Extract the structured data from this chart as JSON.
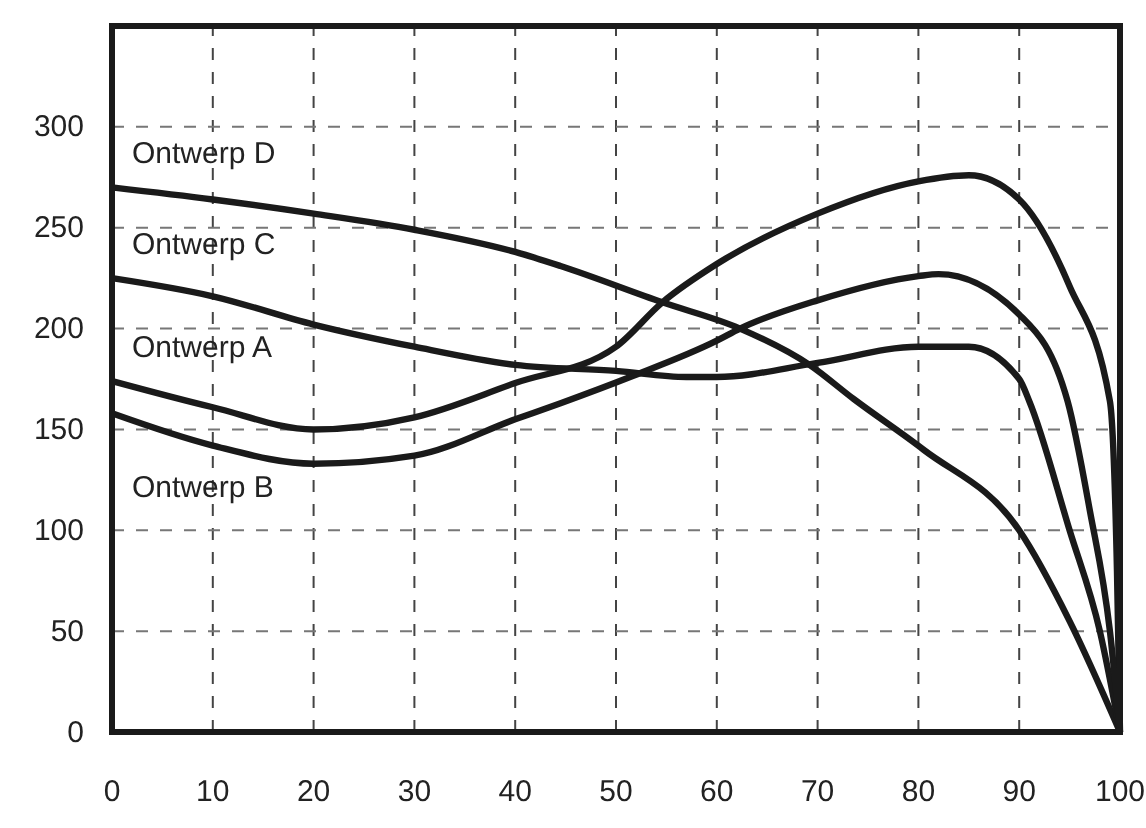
{
  "chart_data": {
    "type": "line",
    "xlim": [
      0,
      100
    ],
    "ylim": [
      0,
      350
    ],
    "xticks": [
      0,
      10,
      20,
      30,
      40,
      50,
      60,
      70,
      80,
      90,
      100
    ],
    "yticks": [
      0,
      50,
      100,
      150,
      200,
      250,
      300
    ],
    "grid": true,
    "line_style": "solid",
    "marker": "none",
    "series": [
      {
        "name": "Ontwerp D",
        "color": "#1a1a1a",
        "x": [
          0,
          10,
          20,
          30,
          40,
          44.5,
          54.6,
          62.3,
          69.2,
          73.6,
          80.5,
          90,
          95,
          100
        ],
        "values": [
          270,
          264,
          257,
          249,
          238,
          231,
          213,
          200,
          182,
          165,
          140,
          100,
          55,
          0
        ]
      },
      {
        "name": "Ontwerp C",
        "color": "#1a1a1a",
        "x": [
          0,
          10,
          20,
          30,
          40,
          50,
          57,
          60,
          70,
          80,
          85,
          90,
          91,
          95,
          98,
          100
        ],
        "values": [
          225,
          216,
          202,
          191,
          182,
          179,
          176,
          176,
          183,
          191,
          191,
          175,
          164,
          100,
          50,
          0
        ]
      },
      {
        "name": "Ontwerp A",
        "color": "#1a1a1a",
        "x": [
          0,
          10,
          20,
          30,
          40,
          50,
          54.6,
          60,
          70,
          80,
          85,
          90,
          95,
          99,
          99.7,
          100
        ],
        "values": [
          174,
          161,
          150,
          156,
          173,
          191,
          213,
          232,
          257,
          273,
          276,
          264,
          221,
          164,
          80,
          0
        ]
      },
      {
        "name": "Ontwerp B",
        "color": "#1a1a1a",
        "x": [
          0,
          10,
          20,
          30,
          40,
          44.5,
          51.4,
          60,
          62.3,
          70,
          80,
          82,
          90,
          94.8,
          97,
          99,
          100
        ],
        "values": [
          158,
          142,
          133,
          137,
          155,
          163,
          176,
          194,
          200,
          214,
          226,
          227,
          207,
          164,
          110,
          50,
          0
        ]
      }
    ]
  }
}
